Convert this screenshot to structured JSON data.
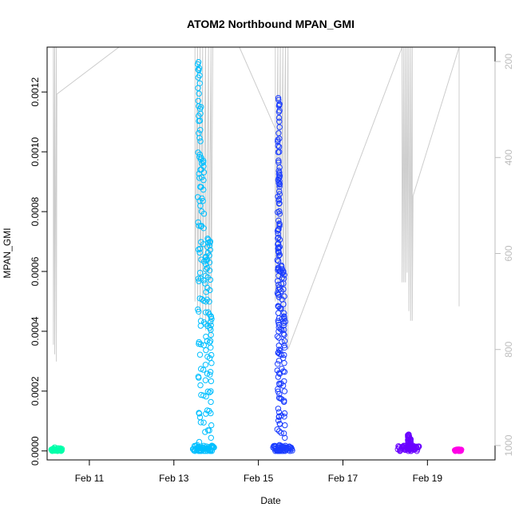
{
  "chart_data": {
    "type": "scatter",
    "title": "ATOM2 Northbound MPAN_GMI",
    "xlabel": "Date",
    "ylabel": "MPAN_GMI",
    "x_unit": "days (February)",
    "xlim": [
      10.0,
      20.6
    ],
    "ylim": [
      -3e-05,
      0.00135
    ],
    "x_ticks": [
      {
        "value": 11,
        "label": "Feb 11"
      },
      {
        "value": 13,
        "label": "Feb 13"
      },
      {
        "value": 15,
        "label": "Feb 15"
      },
      {
        "value": 17,
        "label": "Feb 17"
      },
      {
        "value": 19,
        "label": "Feb 19"
      }
    ],
    "y_ticks": [
      {
        "value": 0.0,
        "label": "0.0000"
      },
      {
        "value": 0.0002,
        "label": "0.0002"
      },
      {
        "value": 0.0004,
        "label": "0.0004"
      },
      {
        "value": 0.0006,
        "label": "0.0006"
      },
      {
        "value": 0.0008,
        "label": "0.0008"
      },
      {
        "value": 0.001,
        "label": "0.0010"
      },
      {
        "value": 0.0012,
        "label": "0.0012"
      }
    ],
    "secondary_axis": {
      "side": "right",
      "reversed": true,
      "color": "#bdbdbd",
      "range": [
        170,
        1030
      ],
      "ticks": [
        200,
        400,
        600,
        800,
        1000
      ]
    },
    "pressure_trace": {
      "color": "#cccccc",
      "points": [
        [
          10.15,
          160
        ],
        [
          10.15,
          790
        ],
        [
          10.18,
          160
        ],
        [
          10.18,
          810
        ],
        [
          10.22,
          160
        ],
        [
          10.22,
          825
        ],
        [
          10.23,
          268
        ],
        [
          11.7,
          160
        ],
        [
          13.5,
          160
        ],
        [
          13.5,
          700
        ],
        [
          13.56,
          160
        ],
        [
          13.56,
          720
        ],
        [
          13.62,
          160
        ],
        [
          13.62,
          735
        ],
        [
          13.68,
          160
        ],
        [
          13.68,
          740
        ],
        [
          13.75,
          160
        ],
        [
          13.75,
          760
        ],
        [
          13.82,
          160
        ],
        [
          13.82,
          770
        ],
        [
          13.88,
          160
        ],
        [
          13.88,
          780
        ],
        [
          13.92,
          160
        ],
        [
          14.55,
          160
        ],
        [
          15.4,
          340
        ],
        [
          15.4,
          160
        ],
        [
          15.4,
          700
        ],
        [
          15.46,
          160
        ],
        [
          15.46,
          720
        ],
        [
          15.52,
          160
        ],
        [
          15.52,
          735
        ],
        [
          15.58,
          160
        ],
        [
          15.58,
          760
        ],
        [
          15.64,
          160
        ],
        [
          15.64,
          790
        ],
        [
          15.7,
          160
        ],
        [
          15.7,
          800
        ],
        [
          18.4,
          160
        ],
        [
          18.4,
          660
        ],
        [
          18.44,
          160
        ],
        [
          18.44,
          660
        ],
        [
          18.48,
          160
        ],
        [
          18.48,
          660
        ],
        [
          18.52,
          160
        ],
        [
          18.52,
          640
        ],
        [
          18.56,
          160
        ],
        [
          18.56,
          720
        ],
        [
          18.6,
          160
        ],
        [
          18.6,
          740
        ],
        [
          18.64,
          160
        ],
        [
          18.64,
          740
        ],
        [
          18.66,
          480
        ],
        [
          19.75,
          160
        ],
        [
          19.75,
          710
        ]
      ]
    },
    "series": [
      {
        "color": "#00ffaa",
        "x_range": [
          10.1,
          10.35
        ],
        "y_max": 1.5e-05,
        "points": [
          [
            10.12,
            0.0
          ],
          [
            10.15,
            8e-06
          ],
          [
            10.18,
            1.2e-05
          ],
          [
            10.2,
            5e-06
          ],
          [
            10.25,
            0.0
          ],
          [
            10.3,
            2e-06
          ],
          [
            10.33,
            0.0
          ]
        ]
      },
      {
        "color": "#00bfff",
        "x_range": [
          13.45,
          13.95
        ],
        "peaks": [
          [
            13.58,
            0.0013
          ],
          [
            13.6,
            0.00128
          ],
          [
            13.63,
            0.00115
          ],
          [
            13.65,
            0.00098
          ],
          [
            13.7,
            0.00097
          ],
          [
            13.75,
            0.00065
          ],
          [
            13.8,
            0.00071
          ],
          [
            13.85,
            0.0007
          ],
          [
            13.88,
            0.00045
          ]
        ],
        "points": [
          [
            13.5,
            0.0
          ],
          [
            13.55,
            2e-05
          ],
          [
            13.6,
            3e-05
          ],
          [
            13.7,
            1e-05
          ],
          [
            13.9,
            0.0
          ]
        ]
      },
      {
        "color": "#1a3cff",
        "x_range": [
          15.35,
          15.8
        ],
        "peaks": [
          [
            15.48,
            0.00118
          ],
          [
            15.5,
            0.00116
          ],
          [
            15.47,
            0.00104
          ],
          [
            15.49,
            0.00093
          ],
          [
            15.51,
            0.00092
          ],
          [
            15.46,
            0.00074
          ],
          [
            15.48,
            0.00068
          ],
          [
            15.55,
            0.00062
          ],
          [
            15.6,
            0.0006
          ],
          [
            15.62,
            0.00045
          ]
        ],
        "points": [
          [
            15.4,
            0.0
          ],
          [
            15.5,
            2e-05
          ],
          [
            15.6,
            1e-05
          ],
          [
            15.75,
            0.0
          ]
        ]
      },
      {
        "color": "#6a00ff",
        "x_range": [
          18.3,
          18.8
        ],
        "peaks": [
          [
            18.55,
            5.5e-05
          ],
          [
            18.6,
            4e-05
          ]
        ],
        "points": [
          [
            18.35,
            0.0
          ],
          [
            18.45,
            8e-06
          ],
          [
            18.55,
            2e-05
          ],
          [
            18.65,
            1e-05
          ],
          [
            18.75,
            0.0
          ]
        ]
      },
      {
        "color": "#ff00e6",
        "x_range": [
          19.65,
          19.8
        ],
        "y_max": 8e-06,
        "points": [
          [
            19.66,
            0.0
          ],
          [
            19.7,
            5e-06
          ],
          [
            19.73,
            2e-06
          ],
          [
            19.77,
            0.0
          ]
        ]
      }
    ],
    "grid": false,
    "legend": "none"
  }
}
